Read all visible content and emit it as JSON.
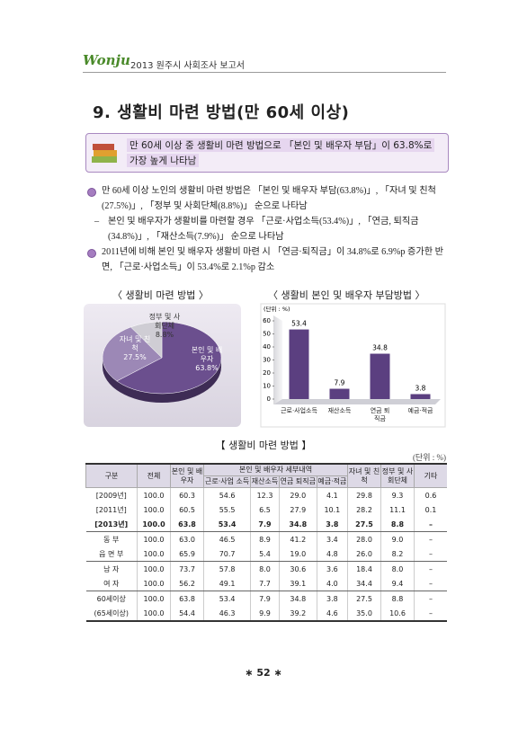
{
  "header": {
    "logo": "Wonju",
    "report": "2013 원주시 사회조사 보고서"
  },
  "title": "9. 생활비 마련 방법(만 60세 이상)",
  "summary": [
    "만 60세 이상 중 생활비 마련 방법으로 「본인 및 배우자 부담」이 63.8%로",
    "가장 높게 나타남"
  ],
  "bullets": [
    "만 60세 이상 노인의 생활비 마련 방법은 「본인 및 배우자 부담(63.8%)」, 「자녀 및 친척(27.5%)」, 「정부 및 사회단체(8.8%)」 순으로 나타남",
    "본인 및 배우자가 생활비를 마련할 경우 「근로·사업소득(53.4%)」, 「연금, 퇴직금(34.8%)」, 「재산소득(7.9%)」 순으로 나타남",
    "2011년에 비해 본인 및 배우자 생활비 마련 시 「연금·퇴직금」이 34.8%로 6.9%p 증가한 반면, 「근로·사업소득」이 53.4%로 2.1%p 감소"
  ],
  "chart_data": [
    {
      "type": "pie",
      "title": "〈 생활비 마련 방법 〉",
      "categories": [
        "본인 및 배우자",
        "자녀 및 친척",
        "정부 및 사회단체"
      ],
      "values": [
        63.8,
        27.5,
        8.8
      ],
      "value_labels": [
        "63.8%",
        "27.5%",
        "8.8%"
      ],
      "colors": [
        "#6b4f8e",
        "#9c88b6",
        "#cfcdd4"
      ]
    },
    {
      "type": "bar",
      "title": "〈 생활비 본인 및 배우자 부담방법 〉",
      "unit": "(단위 : %)",
      "categories": [
        "근로·사업소득",
        "재산소득",
        "연금 퇴직금",
        "예금·적금"
      ],
      "values": [
        53.4,
        7.9,
        34.8,
        3.8
      ],
      "color": "#5b3f80",
      "ylim": [
        0,
        60
      ],
      "yticks": [
        0,
        10,
        20,
        30,
        40,
        50,
        60
      ]
    }
  ],
  "table": {
    "caption": "【 생활비 마련 방법 】",
    "unit": "(단위 : %)",
    "header": {
      "group": "구분",
      "total": "전체",
      "self": "본인 및 배우자",
      "detail": "본인 및 배우자 세부내역",
      "sub": [
        "근로·사업 소득",
        "재산소득",
        "연금 퇴직금",
        "예금·적금"
      ],
      "children": "자녀 및 친척",
      "gov": "정부 및 사회단체",
      "etc": "기타"
    },
    "rows": [
      [
        "[2009년]",
        "100.0",
        "60.3",
        "54.6",
        "12.3",
        "29.0",
        "4.1",
        "29.8",
        "9.3",
        "0.6"
      ],
      [
        "[2011년]",
        "100.0",
        "60.5",
        "55.5",
        "6.5",
        "27.9",
        "10.1",
        "28.2",
        "11.1",
        "0.1"
      ],
      [
        "[2013년]",
        "100.0",
        "63.8",
        "53.4",
        "7.9",
        "34.8",
        "3.8",
        "27.5",
        "8.8",
        "–"
      ],
      [
        "동 부",
        "100.0",
        "63.0",
        "46.5",
        "8.9",
        "41.2",
        "3.4",
        "28.0",
        "9.0",
        "–"
      ],
      [
        "읍 면 부",
        "100.0",
        "65.9",
        "70.7",
        "5.4",
        "19.0",
        "4.8",
        "26.0",
        "8.2",
        "–"
      ],
      [
        "남 자",
        "100.0",
        "73.7",
        "57.8",
        "8.0",
        "30.6",
        "3.6",
        "18.4",
        "8.0",
        "–"
      ],
      [
        "여 자",
        "100.0",
        "56.2",
        "49.1",
        "7.7",
        "39.1",
        "4.0",
        "34.4",
        "9.4",
        "–"
      ],
      [
        "60세이상",
        "100.0",
        "63.8",
        "53.4",
        "7.9",
        "34.8",
        "3.8",
        "27.5",
        "8.8",
        "–"
      ],
      [
        "(65세이상)",
        "100.0",
        "54.4",
        "46.3",
        "9.9",
        "39.2",
        "4.6",
        "35.0",
        "10.6",
        "–"
      ]
    ]
  },
  "footer": "∗ 52 ∗"
}
